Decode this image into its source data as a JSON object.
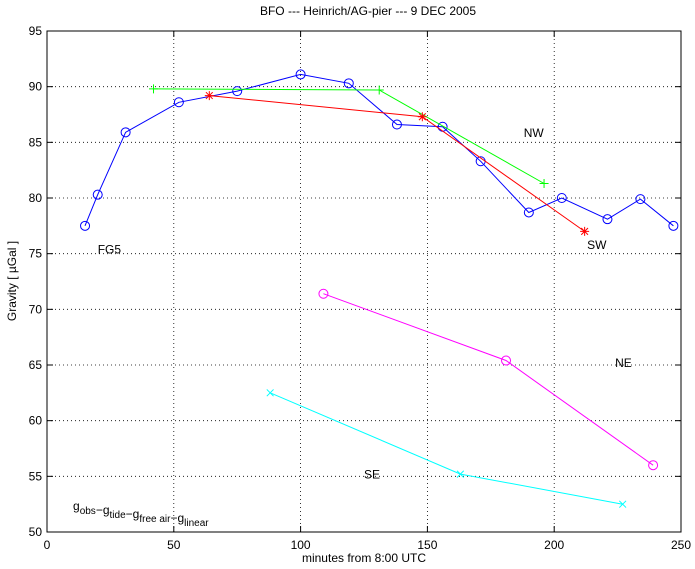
{
  "chart_data": {
    "type": "line",
    "title": "BFO --- Heinrich/AG-pier --- 9 DEC 2005",
    "xlabel": "minutes from 8:00 UTC",
    "ylabel": "Gravity  [ µGal ]",
    "xlim": [
      0,
      250
    ],
    "ylim": [
      50,
      95
    ],
    "xticks": [
      0,
      50,
      100,
      150,
      200,
      250
    ],
    "yticks": [
      50,
      55,
      60,
      65,
      70,
      75,
      80,
      85,
      90,
      95
    ],
    "grid": true,
    "legend_formula": {
      "base": "g",
      "terms": [
        {
          "sign": "",
          "sub": "obs"
        },
        {
          "sign": "−",
          "sub": "tide"
        },
        {
          "sign": "−",
          "sub": "free air"
        },
        {
          "sign": "−",
          "sub": "linear"
        }
      ]
    },
    "series": [
      {
        "name": "FG5",
        "color": "#0000ff",
        "marker": "circle",
        "x": [
          15,
          20,
          31,
          52,
          75,
          100,
          119,
          138,
          156,
          171,
          190,
          203,
          221,
          234,
          247
        ],
        "y": [
          77.5,
          80.3,
          85.9,
          88.6,
          89.6,
          91.1,
          90.3,
          86.6,
          86.4,
          83.3,
          78.7,
          80.0,
          78.1,
          79.9,
          77.5
        ],
        "label_at": [
          20,
          75
        ]
      },
      {
        "name": "NW",
        "color": "#00ff00",
        "marker": "plus",
        "x": [
          42,
          131,
          196
        ],
        "y": [
          89.8,
          89.7,
          81.3
        ],
        "label_at": [
          188,
          85.5
        ]
      },
      {
        "name": "SW",
        "color": "#ff0000",
        "marker": "asterisk",
        "x": [
          64,
          148,
          212
        ],
        "y": [
          89.2,
          87.3,
          77.0
        ],
        "label_at": [
          213,
          75.4
        ]
      },
      {
        "name": "NE",
        "color": "#ff00ff",
        "marker": "circle",
        "x": [
          109,
          181,
          239
        ],
        "y": [
          71.4,
          65.4,
          56.0
        ],
        "label_at": [
          224,
          64.8
        ]
      },
      {
        "name": "SE",
        "color": "#00ffff",
        "marker": "x",
        "x": [
          88,
          163,
          227
        ],
        "y": [
          62.5,
          55.2,
          52.5
        ],
        "label_at": [
          125,
          54.8
        ]
      }
    ]
  }
}
